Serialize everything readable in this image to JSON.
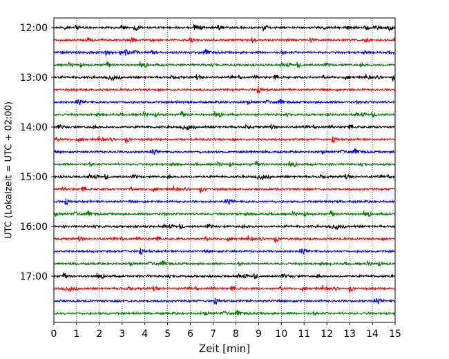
{
  "chart_data": {
    "type": "line",
    "title": "",
    "xlabel": "Zeit  [min]",
    "ylabel": "UTC (Lokalzeit = UTC + 02:00)",
    "xlim": [
      0,
      15
    ],
    "xticks": [
      0,
      1,
      2,
      3,
      4,
      5,
      6,
      7,
      8,
      9,
      10,
      11,
      12,
      13,
      14,
      15
    ],
    "y_tick_labels": [
      "12:00",
      "13:00",
      "14:00",
      "15:00",
      "16:00",
      "17:00"
    ],
    "grid": "vertical dotted lines at each minute",
    "trace_interval_minutes": 15,
    "trace_start_times": [
      "12:00",
      "12:15",
      "12:30",
      "12:45",
      "13:00",
      "13:15",
      "13:30",
      "13:45",
      "14:00",
      "14:15",
      "14:30",
      "14:45",
      "15:00",
      "15:15",
      "15:30",
      "15:45",
      "16:00",
      "16:15",
      "16:30",
      "16:45",
      "17:00",
      "17:15",
      "17:30",
      "17:45"
    ],
    "trace_color_cycle": [
      "#000000",
      "#ff0000",
      "#0000ff",
      "#008000"
    ],
    "legend": "none"
  }
}
